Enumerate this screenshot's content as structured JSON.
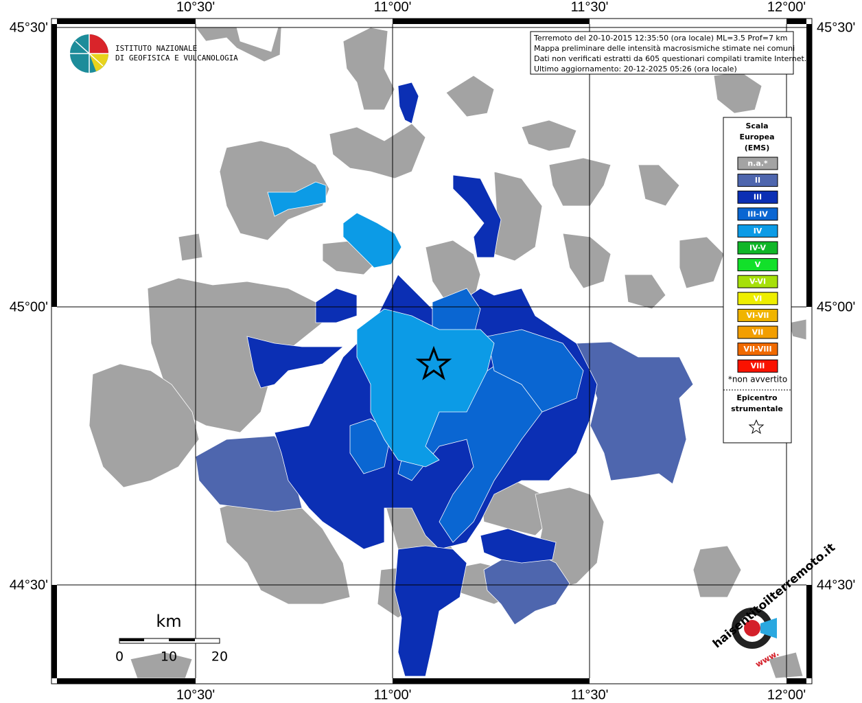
{
  "axes": {
    "top": [
      "10°30'",
      "11°00'",
      "11°30'",
      "12°00'"
    ],
    "bottom": [
      "10°30'",
      "11°00'",
      "11°30'",
      "12°00'"
    ],
    "left": [
      "45°30'",
      "45°00'",
      "44°30'"
    ],
    "right": [
      "45°30'",
      "45°00'",
      "44°30'"
    ]
  },
  "logo": {
    "lines": [
      "ISTITUTO NAZIONALE",
      "DI GEOFISICA E VULCANOLOGIA"
    ]
  },
  "info": {
    "lines": [
      "Terremoto del 20-10-2015 12:35:50 (ora locale) ML=3.5 Prof=7 km",
      "Mappa preliminare delle intensità macrosismiche stimate nei comuni",
      "Dati non verificati estratti da 605 questionari compilati tramite Internet.",
      "Ultimo aggiornamento: 20-12-2025 05:26 (ora locale)"
    ]
  },
  "legend": {
    "title": [
      "Scala",
      "Europea",
      "(EMS)"
    ],
    "classes": [
      {
        "label": "n.a.*",
        "color": "#a3a3a3"
      },
      {
        "label": "II",
        "color": "#4e66ae"
      },
      {
        "label": "III",
        "color": "#0b2fb4"
      },
      {
        "label": "III-IV",
        "color": "#0a66d2"
      },
      {
        "label": "IV",
        "color": "#0c9be6"
      },
      {
        "label": "IV-V",
        "color": "#10b628"
      },
      {
        "label": "V",
        "color": "#12e02a"
      },
      {
        "label": "V-VI",
        "color": "#a6e00a"
      },
      {
        "label": "VI",
        "color": "#eeee00"
      },
      {
        "label": "VI-VII",
        "color": "#f0b400"
      },
      {
        "label": "VII",
        "color": "#f29e00"
      },
      {
        "label": "VII-VIII",
        "color": "#f06a00"
      },
      {
        "label": "VIII",
        "color": "#fa1200"
      }
    ],
    "note": "*non avvertito",
    "epicenter": [
      "Epicentro",
      "strumentale"
    ]
  },
  "scale": {
    "unit": "km",
    "labels": [
      "0",
      "10",
      "20"
    ]
  },
  "brand": {
    "name": "haisentitoilterremoto.it",
    "prefix": "www."
  }
}
